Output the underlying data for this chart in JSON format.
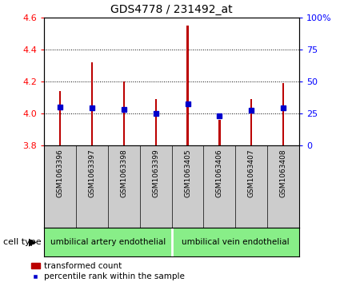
{
  "title": "GDS4778 / 231492_at",
  "samples": [
    "GSM1063396",
    "GSM1063397",
    "GSM1063398",
    "GSM1063399",
    "GSM1063405",
    "GSM1063406",
    "GSM1063407",
    "GSM1063408"
  ],
  "transformed_count": [
    4.14,
    4.32,
    4.2,
    4.09,
    4.55,
    3.96,
    4.09,
    4.19
  ],
  "percentile_rank": [
    30,
    29,
    28,
    25,
    32,
    23,
    27,
    29
  ],
  "ymin": 3.8,
  "ymax": 4.6,
  "yticks": [
    3.8,
    4.0,
    4.2,
    4.4,
    4.6
  ],
  "right_yticks": [
    0,
    25,
    50,
    75,
    100
  ],
  "bar_color": "#bb0000",
  "percentile_color": "#0000cc",
  "group1_label": "umbilical artery endothelial",
  "group2_label": "umbilical vein endothelial",
  "group1_indices": [
    0,
    1,
    2,
    3
  ],
  "group2_indices": [
    4,
    5,
    6,
    7
  ],
  "group_bg_color": "#88ee88",
  "sample_bg_color": "#cccccc",
  "cell_type_label": "cell type",
  "legend1": "transformed count",
  "legend2": "percentile rank within the sample",
  "bar_width": 0.06,
  "baseline": 3.8,
  "fig_width": 4.25,
  "fig_height": 3.63
}
